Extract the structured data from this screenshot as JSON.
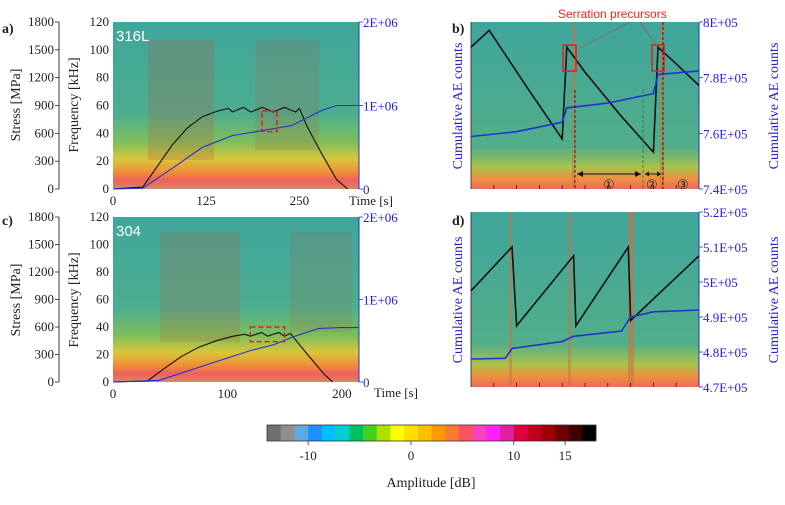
{
  "chart_data": [
    {
      "panel": "a)",
      "type": "line",
      "inset_label": "316L",
      "xlabel": "Time [s]",
      "ylabel_outer": "Stress [MPa]",
      "ylabel_inner": "Frequency [kHz]",
      "xlim": [
        0,
        330
      ],
      "x_ticks": [
        "0",
        "125",
        "250"
      ],
      "x_tick_values": [
        0,
        125,
        250
      ],
      "stress_ticks": [
        "0",
        "300",
        "600",
        "900",
        "1200",
        "1500",
        "1800"
      ],
      "freq_ticks": [
        "0",
        "20",
        "40",
        "60",
        "80",
        "100",
        "120"
      ],
      "right_ticks": [
        "0",
        "1E+06",
        "2E+06"
      ],
      "ylim_stress": [
        0,
        1800
      ],
      "ylim_right": [
        0,
        2000000
      ],
      "background": "spectrogram",
      "series": [
        {
          "role": "stress",
          "color": "#111111",
          "x": [
            0,
            40,
            60,
            80,
            100,
            120,
            140,
            155,
            160,
            175,
            185,
            200,
            215,
            230,
            245,
            250,
            260,
            280,
            300,
            315
          ],
          "y": [
            0,
            20,
            250,
            480,
            660,
            780,
            840,
            870,
            830,
            880,
            830,
            880,
            830,
            880,
            830,
            870,
            680,
            380,
            100,
            0
          ]
        },
        {
          "role": "cumulative_ae",
          "color": "#2233cc",
          "x": [
            0,
            40,
            80,
            120,
            160,
            200,
            240,
            260,
            280,
            300,
            320,
            330
          ],
          "y": [
            0,
            10000,
            250000,
            500000,
            640000,
            700000,
            760000,
            850000,
            940000,
            1000000,
            1000000,
            1000000
          ]
        }
      ],
      "highlight": {
        "x": [
          200,
          220
        ],
        "y": [
          620,
          840
        ]
      }
    },
    {
      "panel": "b)",
      "type": "line",
      "ylabel_right": "Cumulative AE counts",
      "ylabel_left": "Cumulative AE counts",
      "right_ticks": [
        "7.4E+05",
        "7.6E+05",
        "7.8E+05",
        "8E+05"
      ],
      "ylim_right": [
        730000,
        800000
      ],
      "annotation": "Serration precursors",
      "phase_markers": [
        "①",
        "②",
        "③"
      ],
      "series": [
        {
          "role": "stress",
          "color": "#111111",
          "x": [
            0,
            0.08,
            0.25,
            0.4,
            0.42,
            0.5,
            0.65,
            0.8,
            0.82,
            0.9,
            1.0
          ],
          "y": [
            0.85,
            0.95,
            0.6,
            0.3,
            0.85,
            0.7,
            0.45,
            0.22,
            0.85,
            0.75,
            0.62
          ]
        },
        {
          "role": "cumulative_ae",
          "color": "#2233cc",
          "x": [
            0,
            0.2,
            0.4,
            0.42,
            0.6,
            0.8,
            0.82,
            1.0
          ],
          "y": [
            752000,
            754000,
            758000,
            764000,
            766000,
            770000,
            778000,
            779500
          ]
        }
      ]
    },
    {
      "panel": "c)",
      "type": "line",
      "inset_label": "304",
      "xlabel": "Time [s]",
      "ylabel_outer": "Stress [MPa]",
      "ylabel_inner": "Frequency [kHz]",
      "xlim": [
        0,
        215
      ],
      "x_ticks": [
        "0",
        "100",
        "200"
      ],
      "x_tick_values": [
        0,
        100,
        200
      ],
      "stress_ticks": [
        "0",
        "300",
        "600",
        "900",
        "1200",
        "1500",
        "1800"
      ],
      "freq_ticks": [
        "0",
        "20",
        "40",
        "60",
        "80",
        "100",
        "120"
      ],
      "right_ticks": [
        "0",
        "1E+06",
        "2E+06"
      ],
      "ylim_stress": [
        0,
        1800
      ],
      "ylim_right": [
        0,
        2000000
      ],
      "background": "spectrogram",
      "series": [
        {
          "role": "stress",
          "color": "#111111",
          "x": [
            0,
            30,
            45,
            60,
            75,
            90,
            105,
            115,
            120,
            130,
            135,
            145,
            150,
            155,
            170,
            185,
            192
          ],
          "y": [
            0,
            10,
            150,
            280,
            380,
            450,
            500,
            520,
            500,
            540,
            500,
            540,
            500,
            530,
            300,
            80,
            0
          ]
        },
        {
          "role": "cumulative_ae",
          "color": "#2233cc",
          "x": [
            0,
            40,
            80,
            120,
            140,
            160,
            180,
            200,
            215
          ],
          "y": [
            0,
            20000,
            200000,
            380000,
            450000,
            560000,
            650000,
            660000,
            660000
          ]
        }
      ],
      "highlight": {
        "x": [
          120,
          150
        ],
        "y": [
          440,
          600
        ]
      }
    },
    {
      "panel": "d)",
      "type": "line",
      "ylabel_right": "Cumulative AE counts",
      "ylabel_left": "Cumulative AE counts",
      "right_ticks": [
        "4.7E+05",
        "4.8E+05",
        "4.9E+05",
        "5E+05",
        "5.1E+05",
        "5.2E+05"
      ],
      "ylim_right": [
        470000,
        520000
      ],
      "series": [
        {
          "role": "stress",
          "color": "#111111",
          "x": [
            0,
            0.18,
            0.2,
            0.45,
            0.46,
            0.69,
            0.7,
            1.0
          ],
          "y": [
            0.55,
            0.8,
            0.35,
            0.75,
            0.35,
            0.8,
            0.38,
            0.75
          ]
        },
        {
          "role": "cumulative_ae",
          "color": "#2233cc",
          "x": [
            0,
            0.15,
            0.18,
            0.4,
            0.45,
            0.66,
            0.7,
            0.8,
            1.0
          ],
          "y": [
            478000,
            478200,
            481000,
            483000,
            484500,
            486000,
            490000,
            491500,
            492000
          ]
        }
      ]
    }
  ],
  "colorbar": {
    "ticks": [
      "-10",
      "0",
      "10",
      "15"
    ],
    "tick_values": [
      -10,
      0,
      10,
      15
    ],
    "range": [
      -14,
      18
    ],
    "label": "Amplitude [dB]",
    "colors": [
      "#6f6f6f",
      "#8f8f8f",
      "#5fa9e0",
      "#1e90ff",
      "#00bfff",
      "#00cfd0",
      "#00c060",
      "#40d020",
      "#b0e000",
      "#ffff00",
      "#ffe000",
      "#ffc000",
      "#ff9a00",
      "#ff7a30",
      "#ff5060",
      "#ff40c0",
      "#ff20ff",
      "#e020a0",
      "#e00040",
      "#c00020",
      "#a00000",
      "#700000",
      "#400000",
      "#000000"
    ]
  }
}
